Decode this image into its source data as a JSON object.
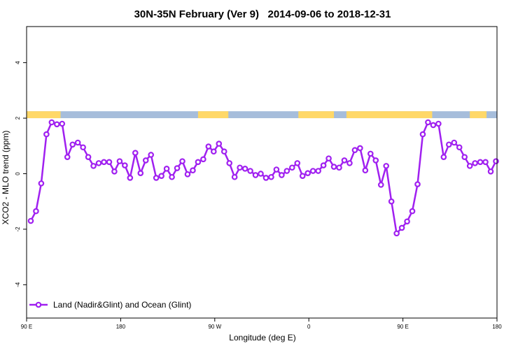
{
  "chart_data": {
    "type": "line",
    "title": "30N-35N February (Ver 9)   2014-09-06 to 2018-12-31",
    "xlabel": "Longitude (deg E)",
    "ylabel": "XCO2 - MLO trend (ppm)",
    "xlim": [
      90,
      540
    ],
    "ylim": [
      -5.2,
      5.3
    ],
    "x_ticks": [
      {
        "value": 90,
        "label": "90 E"
      },
      {
        "value": 180,
        "label": "180"
      },
      {
        "value": 270,
        "label": "90 W"
      },
      {
        "value": 360,
        "label": "0"
      },
      {
        "value": 450,
        "label": "90 E"
      },
      {
        "value": 540,
        "label": "180"
      }
    ],
    "y_ticks": [
      {
        "value": -4,
        "label": "-4"
      },
      {
        "value": -2,
        "label": "-2"
      },
      {
        "value": 0,
        "label": "0"
      },
      {
        "value": 2,
        "label": "2"
      },
      {
        "value": 4,
        "label": "4"
      }
    ],
    "colors": {
      "line": "#a020f0",
      "land_band": "#ffd868",
      "ocean_band": "#a6bddb"
    },
    "surface_band": {
      "y_range": [
        2.0,
        2.25
      ],
      "land_intervals": [
        [
          90,
          122.5
        ],
        [
          254,
          283
        ],
        [
          350,
          384
        ],
        [
          396,
          478
        ],
        [
          514,
          530
        ]
      ]
    },
    "legend": {
      "position": "bottom-left",
      "entries": [
        "Land (Nadir&Glint) and Ocean (Glint)"
      ]
    },
    "series": [
      {
        "name": "Land (Nadir&Glint) and Ocean (Glint)",
        "x": [
          94,
          99,
          104,
          109,
          114,
          119,
          124,
          129,
          134,
          139,
          144,
          149,
          154,
          159,
          164,
          169,
          174,
          179,
          184,
          189,
          194,
          199,
          204,
          209,
          214,
          219,
          224,
          229,
          234,
          239,
          244,
          249,
          254,
          259,
          264,
          269,
          274,
          279,
          284,
          289,
          294,
          299,
          304,
          309,
          314,
          319,
          324,
          329,
          334,
          339,
          344,
          349,
          354,
          359,
          364,
          369,
          374,
          379,
          384,
          389,
          394,
          399,
          404,
          409,
          414,
          419,
          424,
          429,
          434,
          439,
          444,
          449,
          454,
          459,
          464,
          469,
          474,
          479,
          484,
          489,
          494,
          499,
          504,
          509,
          514,
          519,
          524,
          529,
          534,
          539
        ],
        "y": [
          -1.7,
          -1.35,
          -0.35,
          1.42,
          1.85,
          1.78,
          1.8,
          0.6,
          1.05,
          1.12,
          0.95,
          0.6,
          0.28,
          0.38,
          0.42,
          0.42,
          0.08,
          0.45,
          0.3,
          -0.15,
          0.75,
          0.02,
          0.48,
          0.68,
          -0.15,
          -0.08,
          0.18,
          -0.12,
          0.2,
          0.45,
          -0.02,
          0.12,
          0.42,
          0.52,
          0.98,
          0.8,
          1.08,
          0.8,
          0.38,
          -0.12,
          0.22,
          0.18,
          0.1,
          -0.05,
          0.0,
          -0.15,
          -0.12,
          0.15,
          -0.05,
          0.1,
          0.22,
          0.38,
          -0.08,
          0.02,
          0.1,
          0.1,
          0.3,
          0.55,
          0.25,
          0.22,
          0.48,
          0.38,
          0.85,
          0.92,
          0.12,
          0.72,
          0.48,
          -0.4,
          0.28,
          -1.0,
          -2.15,
          -1.95,
          -1.72,
          -1.35,
          -0.38,
          1.42,
          1.85,
          1.75,
          1.8,
          0.6,
          1.05,
          1.12,
          0.95,
          0.6,
          0.28,
          0.38,
          0.42,
          0.42,
          0.08,
          0.45
        ]
      }
    ]
  }
}
